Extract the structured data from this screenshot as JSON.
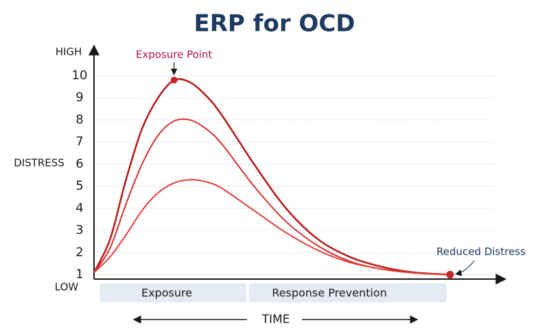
{
  "chart_data": {
    "type": "line",
    "title": "ERP for OCD",
    "y_label": "DISTRESS",
    "y_high_label": "HIGH",
    "y_low_label": "LOW",
    "x_label": "TIME",
    "phases": [
      "Exposure",
      "Response Prevention"
    ],
    "annotations": [
      "Exposure Point",
      "Reduced Distress"
    ],
    "x": [
      0,
      4,
      8,
      12,
      16,
      20,
      24,
      28,
      32,
      40,
      48,
      56,
      64,
      72,
      80,
      89
    ],
    "xlim": [
      0,
      100
    ],
    "ylim": [
      0.8,
      10.2
    ],
    "yticks": [
      1,
      2,
      3,
      4,
      5,
      6,
      7,
      8,
      9,
      10
    ],
    "grid": true,
    "series": [
      {
        "color": "#b71c1c",
        "values": [
          1.1,
          2.6,
          5.3,
          7.6,
          9.0,
          9.8,
          9.7,
          9.1,
          8.2,
          6.0,
          4.0,
          2.6,
          1.8,
          1.35,
          1.1,
          1.0
        ]
      },
      {
        "color": "#d32f2f",
        "values": [
          1.1,
          2.2,
          4.2,
          6.0,
          7.3,
          7.95,
          8.0,
          7.6,
          6.9,
          5.0,
          3.4,
          2.3,
          1.6,
          1.25,
          1.08,
          1.0
        ]
      },
      {
        "color": "#e53935",
        "values": [
          1.1,
          1.8,
          2.8,
          3.9,
          4.7,
          5.15,
          5.3,
          5.2,
          4.9,
          3.9,
          2.9,
          2.1,
          1.55,
          1.25,
          1.08,
          1.0
        ]
      }
    ]
  }
}
